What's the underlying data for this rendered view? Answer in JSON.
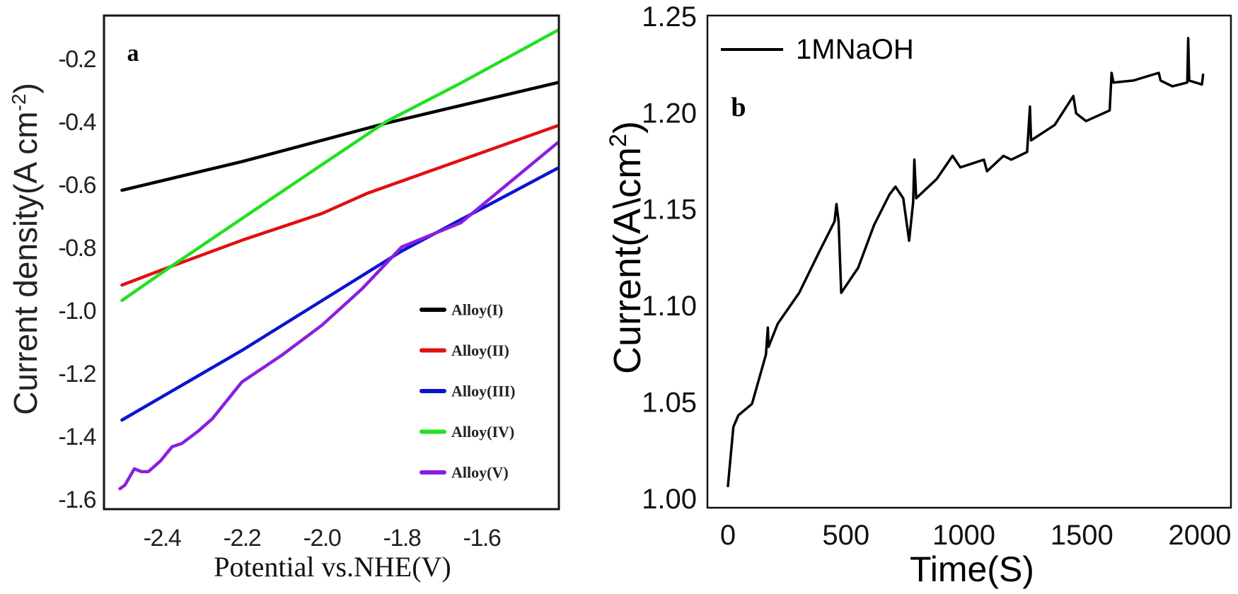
{
  "chart_data": [
    {
      "type": "line",
      "panel_label": "a",
      "xlabel": "Potential vs.NHE(V)",
      "ylabel": {
        "text": "Current density(A cm",
        "sup": "-2",
        "close": ")"
      },
      "xlim": [
        -2.545,
        -1.407
      ],
      "ylim": [
        -1.629,
        -0.061
      ],
      "xticks": [
        -2.4,
        -2.2,
        -2.0,
        -1.8,
        -1.6
      ],
      "xtick_labels": [
        "-2.4",
        "-2.2",
        "-2.0",
        "-1.8",
        "-1.6"
      ],
      "yticks": [
        -0.2,
        -0.4,
        -0.6,
        -0.8,
        -1.0,
        -1.2,
        -1.4,
        -1.6
      ],
      "ytick_labels": [
        "-0.2",
        "-0.4",
        "-0.6",
        "-0.8",
        "-1.0",
        "-1.2",
        "-1.4",
        "-1.6"
      ],
      "grid": false,
      "legend_position": "bottom-right",
      "series": [
        {
          "name": "Alloy(I)",
          "color": "#000000",
          "x": [
            -2.5,
            -2.2,
            -1.839,
            -1.41
          ],
          "y": [
            -0.616,
            -0.525,
            -0.403,
            -0.274
          ]
        },
        {
          "name": "Alloy(II)",
          "color": "#e01010",
          "x": [
            -2.5,
            -2.375,
            -2.2,
            -2.0,
            -1.885,
            -1.41
          ],
          "y": [
            -0.917,
            -0.857,
            -0.775,
            -0.69,
            -0.625,
            -0.411
          ]
        },
        {
          "name": "Alloy(III)",
          "color": "#0a14d0",
          "x": [
            -2.5,
            -2.2,
            -1.8,
            -1.41
          ],
          "y": [
            -1.346,
            -1.125,
            -0.809,
            -0.546
          ]
        },
        {
          "name": "Alloy(IV)",
          "color": "#22e022",
          "x": [
            -2.5,
            -2.375,
            -2.2,
            -2.0,
            -1.839,
            -1.65,
            -1.41
          ],
          "y": [
            -0.966,
            -0.856,
            -0.706,
            -0.535,
            -0.398,
            -0.274,
            -0.108
          ]
        },
        {
          "name": "Alloy(V)",
          "color": "#8a1ee0",
          "x": [
            -2.505,
            -2.493,
            -2.469,
            -2.451,
            -2.434,
            -2.404,
            -2.375,
            -2.35,
            -2.31,
            -2.274,
            -2.2,
            -2.1,
            -2.0,
            -1.9,
            -1.8,
            -1.652,
            -1.41
          ],
          "y": [
            -1.564,
            -1.553,
            -1.501,
            -1.51,
            -1.51,
            -1.476,
            -1.431,
            -1.42,
            -1.382,
            -1.342,
            -1.225,
            -1.14,
            -1.045,
            -0.93,
            -0.796,
            -0.719,
            -0.465
          ]
        }
      ]
    },
    {
      "type": "line",
      "panel_label": "b",
      "xlabel": "Time(S)",
      "ylabel": {
        "text": "Current(A\\cm",
        "sup": "2",
        "close": ")"
      },
      "xlim": [
        -87,
        2132
      ],
      "ylim": [
        0.9956,
        1.2507
      ],
      "xticks": [
        0,
        500,
        1000,
        1500,
        2000
      ],
      "xtick_labels": [
        "0",
        "500",
        "1000",
        "1500",
        "2000"
      ],
      "yticks": [
        1.0,
        1.05,
        1.1,
        1.15,
        1.2,
        1.25
      ],
      "ytick_labels": [
        "1.00",
        "1.05",
        "1.10",
        "1.15",
        "1.20",
        "1.25"
      ],
      "grid": false,
      "legend_position": "top-left",
      "series": [
        {
          "name": "1MNaOH",
          "color": "#000000",
          "x": [
            0,
            11,
            23,
            44,
            102,
            161,
            169,
            172,
            211,
            302,
            386,
            452,
            460,
            469,
            480,
            552,
            619,
            685,
            710,
            743,
            768,
            785,
            790,
            798,
            885,
            952,
            985,
            1085,
            1098,
            1168,
            1201,
            1268,
            1280,
            1285,
            1385,
            1464,
            1476,
            1518,
            1618,
            1626,
            1634,
            1718,
            1826,
            1834,
            1884,
            1947,
            1951,
            1955,
            2009,
            2014
          ],
          "y": [
            1.0069,
            1.0217,
            1.0375,
            1.0435,
            1.0494,
            1.075,
            1.089,
            1.079,
            1.091,
            1.107,
            1.128,
            1.144,
            1.153,
            1.144,
            1.107,
            1.12,
            1.142,
            1.158,
            1.162,
            1.156,
            1.134,
            1.154,
            1.176,
            1.156,
            1.166,
            1.178,
            1.172,
            1.176,
            1.17,
            1.178,
            1.176,
            1.18,
            1.2035,
            1.186,
            1.194,
            1.209,
            1.2,
            1.196,
            1.2015,
            1.221,
            1.216,
            1.217,
            1.221,
            1.217,
            1.214,
            1.216,
            1.239,
            1.217,
            1.215,
            1.22
          ]
        }
      ]
    }
  ]
}
